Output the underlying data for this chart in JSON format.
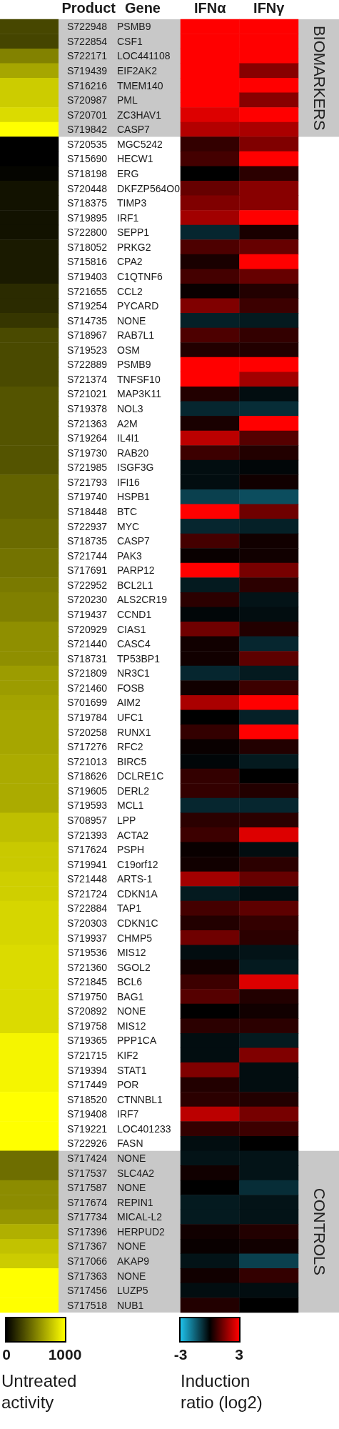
{
  "chart_data": [
    {
      "type": "heatmap",
      "categories": [
        null
      ],
      "y_categories": [
        null,
        null,
        null,
        null,
        null,
        null,
        null,
        null,
        null,
        null,
        null,
        null,
        null,
        null,
        null,
        null,
        null,
        null,
        null,
        null,
        null,
        null,
        null,
        null,
        null,
        null,
        null,
        null,
        null,
        null,
        null,
        null,
        null,
        null,
        null,
        null,
        null,
        null,
        null,
        null,
        null,
        null,
        null,
        null,
        null,
        null,
        null,
        null,
        null,
        null,
        null,
        null,
        null,
        null,
        null,
        null,
        null,
        null,
        null,
        null,
        null,
        null,
        null,
        null,
        null,
        null,
        null,
        null,
        null,
        null,
        null,
        null,
        null,
        null,
        null,
        null,
        null,
        null,
        null,
        null,
        null,
        null,
        null,
        null,
        null,
        null,
        null,
        null
      ],
      "cells": [
        [
          280
        ],
        [
          270
        ],
        [
          510
        ],
        [
          650
        ],
        [
          800
        ],
        [
          800
        ],
        [
          860
        ],
        [
          1000
        ],
        [
          0
        ],
        [
          0
        ],
        [
          20
        ],
        [
          70
        ],
        [
          70
        ],
        [
          70
        ],
        [
          70
        ],
        [
          100
        ],
        [
          100
        ],
        [
          100
        ],
        [
          170
        ],
        [
          170
        ],
        [
          210
        ],
        [
          290
        ],
        [
          290
        ],
        [
          290
        ],
        [
          290
        ],
        [
          330
        ],
        [
          330
        ],
        [
          330
        ],
        [
          330
        ],
        [
          330
        ],
        [
          330
        ],
        [
          390
        ],
        [
          390
        ],
        [
          390
        ],
        [
          420
        ],
        [
          420
        ],
        [
          450
        ],
        [
          450
        ],
        [
          480
        ],
        [
          500
        ],
        [
          500
        ],
        [
          560
        ],
        [
          560
        ],
        [
          560
        ],
        [
          610
        ],
        [
          610
        ],
        [
          640
        ],
        [
          650
        ],
        [
          650
        ],
        [
          650
        ],
        [
          670
        ],
        [
          670
        ],
        [
          670
        ],
        [
          670
        ],
        [
          750
        ],
        [
          750
        ],
        [
          790
        ],
        [
          790
        ],
        [
          810
        ],
        [
          810
        ],
        [
          840
        ],
        [
          840
        ],
        [
          840
        ],
        [
          860
        ],
        [
          860
        ],
        [
          860
        ],
        [
          860
        ],
        [
          860
        ],
        [
          860
        ],
        [
          960
        ],
        [
          960
        ],
        [
          960
        ],
        [
          960
        ],
        [
          1000
        ],
        [
          1000
        ],
        [
          1000
        ],
        [
          1000
        ],
        [
          430
        ],
        [
          430
        ],
        [
          550
        ],
        [
          550
        ],
        [
          590
        ],
        [
          690
        ],
        [
          760
        ],
        [
          800
        ],
        [
          1000
        ],
        [
          1000
        ],
        [
          1000
        ]
      ],
      "clim": [
        0,
        1000
      ],
      "cticks": [
        0,
        1000
      ],
      "clabel": "Untreated activity"
    },
    {
      "type": "heatmap",
      "ylabel": "Product",
      "y2label": "Gene",
      "categories": [
        "IFNα",
        "IFNγ"
      ],
      "y_categories": [
        "S722948",
        "S722854",
        "S722171",
        "S719439",
        "S716216",
        "S720987",
        "S720701",
        "S719842",
        "S720535",
        "S715690",
        "S718198",
        "S720448",
        "S718375",
        "S719895",
        "S722800",
        "S718052",
        "S715816",
        "S719403",
        "S721655",
        "S719254",
        "S714735",
        "S718967",
        "S719523",
        "S722889",
        "S721374",
        "S721021",
        "S719378",
        "S721363",
        "S719264",
        "S719730",
        "S721985",
        "S721793",
        "S719740",
        "S718448",
        "S722937",
        "S718735",
        "S721744",
        "S717691",
        "S722952",
        "S720230",
        "S719437",
        "S720929",
        "S721440",
        "S718731",
        "S721809",
        "S721460",
        "S701699",
        "S719784",
        "S720258",
        "S717276",
        "S721013",
        "S718626",
        "S719605",
        "S719593",
        "S708957",
        "S721393",
        "S717624",
        "S719941",
        "S721448",
        "S721724",
        "S722884",
        "S720303",
        "S719937",
        "S719536",
        "S721360",
        "S721845",
        "S719750",
        "S720892",
        "S719758",
        "S719365",
        "S721715",
        "S719394",
        "S717449",
        "S718520",
        "S719408",
        "S719221",
        "S722926",
        "S717424",
        "S717537",
        "S717587",
        "S717674",
        "S717734",
        "S717396",
        "S717367",
        "S717066",
        "S717363",
        "S717456",
        "S717518"
      ],
      "y2_categories": [
        "PSMB9",
        "CSF1",
        "LOC441108",
        "EIF2AK2",
        "TMEM140",
        "PML",
        "ZC3HAV1",
        "CASP7",
        "MGC5242",
        "HECW1",
        "ERG",
        "DKFZP564O0",
        "TIMP3",
        "IRF1",
        "SEPP1",
        "PRKG2",
        "CPA2",
        "C1QTNF6",
        "CCL2",
        "PYCARD",
        "NONE",
        "RAB7L1",
        "OSM",
        "PSMB9",
        "TNFSF10",
        "MAP3K11",
        "NOL3",
        "A2M",
        "IL4I1",
        "RAB20",
        "ISGF3G",
        "IFI16",
        "HSPB1",
        "BTC",
        "MYC",
        "CASP7",
        "PAK3",
        "PARP12",
        "BCL2L1",
        "ALS2CR19",
        "CCND1",
        "CIAS1",
        "CASC4",
        "TP53BP1",
        "NR3C1",
        "FOSB",
        "AIM2",
        "UFC1",
        "RUNX1",
        "RFC2",
        "BIRC5",
        "DCLRE1C",
        "DERL2",
        "MCL1",
        "LPP",
        "ACTA2",
        "PSPH",
        "C19orf12",
        "ARTS-1",
        "CDKN1A",
        "TAP1",
        "CDKN1C",
        "CHMP5",
        "MIS12",
        "SGOL2",
        "BCL6",
        "BAG1",
        "NONE",
        "MIS12",
        "PPP1CA",
        "KIF2",
        "STAT1",
        "POR",
        "CTNNBL1",
        "IRF7",
        "LOC401233",
        "FASN",
        "NONE",
        "SLC4A2",
        "NONE",
        "REPIN1",
        "MICAL-L2",
        "HERPUD2",
        "NONE",
        "AKAP9",
        "NONE",
        "LUZP5",
        "NUB1"
      ],
      "cells": [
        [
          3,
          3
        ],
        [
          3,
          3
        ],
        [
          3,
          3
        ],
        [
          3,
          1.6
        ],
        [
          3,
          3
        ],
        [
          3,
          1.6
        ],
        [
          2.6,
          3
        ],
        [
          2.1,
          2
        ],
        [
          0.6,
          1.5
        ],
        [
          0.8,
          3
        ],
        [
          0,
          0.5
        ],
        [
          1.2,
          1.6
        ],
        [
          1.5,
          1.6
        ],
        [
          1.9,
          3
        ],
        [
          -0.6,
          0.3
        ],
        [
          0.9,
          1.2
        ],
        [
          0.3,
          3
        ],
        [
          0.8,
          1.2
        ],
        [
          0.1,
          0.4
        ],
        [
          1.5,
          0.7
        ],
        [
          -0.5,
          -0.4
        ],
        [
          0.9,
          0.6
        ],
        [
          0.4,
          0.4
        ],
        [
          3,
          3
        ],
        [
          3,
          1.9
        ],
        [
          0.4,
          -0.2
        ],
        [
          -0.6,
          -0.7
        ],
        [
          0.3,
          3
        ],
        [
          2.2,
          1
        ],
        [
          0.7,
          0.4
        ],
        [
          -0.2,
          -0.1
        ],
        [
          -0.2,
          0.2
        ],
        [
          -1,
          -1.2
        ],
        [
          3,
          1.3
        ],
        [
          -0.6,
          -0.5
        ],
        [
          0.8,
          0.2
        ],
        [
          0.1,
          0.2
        ],
        [
          3,
          1.4
        ],
        [
          -0.4,
          0.5
        ],
        [
          0.5,
          -0.3
        ],
        [
          -0.1,
          -0.2
        ],
        [
          1.3,
          0.4
        ],
        [
          0.2,
          -0.6
        ],
        [
          0.2,
          1.1
        ],
        [
          -0.6,
          -0.4
        ],
        [
          0.2,
          0.7
        ],
        [
          2,
          3
        ],
        [
          0,
          -0.5
        ],
        [
          0.6,
          3
        ],
        [
          0.1,
          0.4
        ],
        [
          -0.1,
          -0.4
        ],
        [
          0.6,
          0
        ],
        [
          0.6,
          0.4
        ],
        [
          -0.6,
          -0.6
        ],
        [
          0.5,
          0.5
        ],
        [
          0.7,
          2.6
        ],
        [
          0.1,
          -0.2
        ],
        [
          0.2,
          0.5
        ],
        [
          1.9,
          1.2
        ],
        [
          -0.4,
          -0.2
        ],
        [
          0.8,
          1.1
        ],
        [
          0.4,
          0.6
        ],
        [
          1.3,
          0.5
        ],
        [
          -0.2,
          -0.3
        ],
        [
          0.2,
          -0.4
        ],
        [
          0.7,
          2.6
        ],
        [
          1,
          0.4
        ],
        [
          0,
          0.2
        ],
        [
          0.5,
          0.5
        ],
        [
          -0.2,
          -0.4
        ],
        [
          -0.2,
          1.5
        ],
        [
          1.5,
          -0.2
        ],
        [
          0.4,
          -0.2
        ],
        [
          0.5,
          0.4
        ],
        [
          2.2,
          1.4
        ],
        [
          0.6,
          0.7
        ],
        [
          -0.2,
          0
        ],
        [
          -0.3,
          -0.3
        ],
        [
          0.2,
          -0.3
        ],
        [
          0,
          -0.7
        ],
        [
          -0.4,
          -0.3
        ],
        [
          -0.4,
          -0.3
        ],
        [
          0.2,
          0.4
        ],
        [
          0.1,
          0.2
        ],
        [
          -0.3,
          -1
        ],
        [
          0.2,
          0.6
        ],
        [
          -0.2,
          -0.2
        ],
        [
          0.4,
          0
        ]
      ],
      "clim": [
        -3,
        3
      ],
      "cticks": [
        -3,
        3
      ],
      "clabel": "Induction ratio (log2)",
      "bands": [
        {
          "axis": "y",
          "from": "S722948",
          "to": "S719842",
          "label": "BIOMARKERS",
          "color": "#c8c8c8"
        },
        {
          "axis": "y",
          "from": "S717424",
          "to": "S717518",
          "label": "CONTROLS",
          "color": "#c8c8c8"
        }
      ]
    }
  ]
}
